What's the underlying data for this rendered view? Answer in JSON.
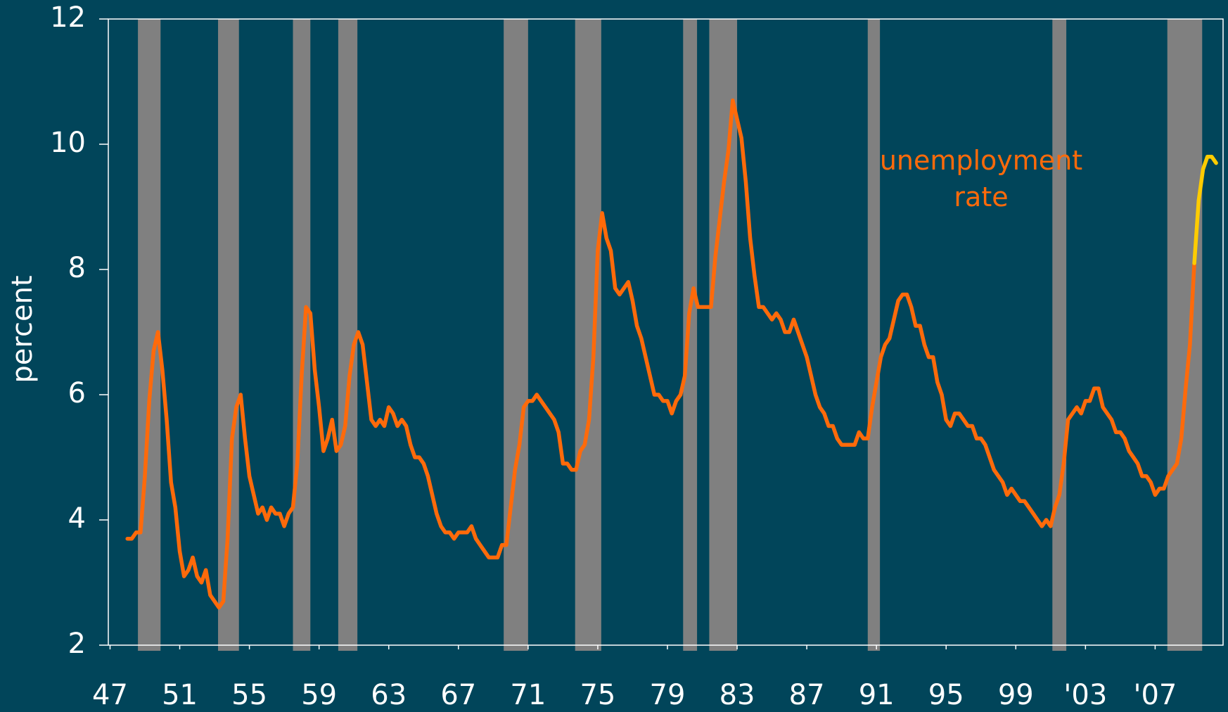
{
  "chart_data": {
    "type": "line",
    "ylabel": "percent",
    "xlim": [
      1946.9,
      2010.9
    ],
    "ylim": [
      2,
      12
    ],
    "yticks": [
      2,
      4,
      6,
      8,
      10,
      12
    ],
    "xticks": [
      {
        "value": 1947,
        "label": "47"
      },
      {
        "value": 1951,
        "label": "51"
      },
      {
        "value": 1955,
        "label": "55"
      },
      {
        "value": 1959,
        "label": "59"
      },
      {
        "value": 1963,
        "label": "63"
      },
      {
        "value": 1967,
        "label": "67"
      },
      {
        "value": 1971,
        "label": "71"
      },
      {
        "value": 1975,
        "label": "75"
      },
      {
        "value": 1979,
        "label": "79"
      },
      {
        "value": 1983,
        "label": "83"
      },
      {
        "value": 1987,
        "label": "87"
      },
      {
        "value": 1991,
        "label": "91"
      },
      {
        "value": 1995,
        "label": "95"
      },
      {
        "value": 1999,
        "label": "99"
      },
      {
        "value": 2003,
        "label": "'03"
      },
      {
        "value": 2007,
        "label": "'07"
      }
    ],
    "recessions": [
      [
        1948.6,
        1949.9
      ],
      [
        1953.2,
        1954.4
      ],
      [
        1957.5,
        1958.5
      ],
      [
        1960.1,
        1961.2
      ],
      [
        1969.6,
        1971.0
      ],
      [
        1973.7,
        1975.2
      ],
      [
        1979.9,
        1980.7
      ],
      [
        1981.4,
        1983.0
      ],
      [
        1990.5,
        1991.2
      ],
      [
        2001.1,
        2001.9
      ],
      [
        2007.7,
        2009.7
      ]
    ],
    "recession_color": "#808080",
    "series": [
      {
        "name": "unemployment rate",
        "color": "#ff6a0a",
        "x": [
          1948,
          1948.25,
          1948.5,
          1948.75,
          1949,
          1949.25,
          1949.5,
          1949.75,
          1950,
          1950.25,
          1950.5,
          1950.75,
          1951,
          1951.25,
          1951.5,
          1951.75,
          1952,
          1952.25,
          1952.5,
          1952.75,
          1953,
          1953.25,
          1953.5,
          1953.75,
          1954,
          1954.25,
          1954.5,
          1954.75,
          1955,
          1955.25,
          1955.5,
          1955.75,
          1956,
          1956.25,
          1956.5,
          1956.75,
          1957,
          1957.25,
          1957.5,
          1957.75,
          1958,
          1958.25,
          1958.5,
          1958.75,
          1959,
          1959.25,
          1959.5,
          1959.75,
          1960,
          1960.25,
          1960.5,
          1960.75,
          1961,
          1961.25,
          1961.5,
          1961.75,
          1962,
          1962.25,
          1962.5,
          1962.75,
          1963,
          1963.25,
          1963.5,
          1963.75,
          1964,
          1964.25,
          1964.5,
          1964.75,
          1965,
          1965.25,
          1965.5,
          1965.75,
          1966,
          1966.25,
          1966.5,
          1966.75,
          1967,
          1967.25,
          1967.5,
          1967.75,
          1968,
          1968.25,
          1968.5,
          1968.75,
          1969,
          1969.25,
          1969.5,
          1969.75,
          1970,
          1970.25,
          1970.5,
          1970.75,
          1971,
          1971.25,
          1971.5,
          1971.75,
          1972,
          1972.25,
          1972.5,
          1972.75,
          1973,
          1973.25,
          1973.5,
          1973.75,
          1974,
          1974.25,
          1974.5,
          1974.75,
          1975,
          1975.25,
          1975.5,
          1975.75,
          1976,
          1976.25,
          1976.5,
          1976.75,
          1977,
          1977.25,
          1977.5,
          1977.75,
          1978,
          1978.25,
          1978.5,
          1978.75,
          1979,
          1979.25,
          1979.5,
          1979.75,
          1980,
          1980.25,
          1980.5,
          1980.75,
          1981,
          1981.25,
          1981.5,
          1981.75,
          1982,
          1982.25,
          1982.5,
          1982.75,
          1983,
          1983.25,
          1983.5,
          1983.75,
          1984,
          1984.25,
          1984.5,
          1984.75,
          1985,
          1985.25,
          1985.5,
          1985.75,
          1986,
          1986.25,
          1986.5,
          1986.75,
          1987,
          1987.25,
          1987.5,
          1987.75,
          1988,
          1988.25,
          1988.5,
          1988.75,
          1989,
          1989.25,
          1989.5,
          1989.75,
          1990,
          1990.25,
          1990.5,
          1990.75,
          1991,
          1991.25,
          1991.5,
          1991.75,
          1992,
          1992.25,
          1992.5,
          1992.75,
          1993,
          1993.25,
          1993.5,
          1993.75,
          1994,
          1994.25,
          1994.5,
          1994.75,
          1995,
          1995.25,
          1995.5,
          1995.75,
          1996,
          1996.25,
          1996.5,
          1996.75,
          1997,
          1997.25,
          1997.5,
          1997.75,
          1998,
          1998.25,
          1998.5,
          1998.75,
          1999,
          1999.25,
          1999.5,
          1999.75,
          2000,
          2000.25,
          2000.5,
          2000.75,
          2001,
          2001.25,
          2001.5,
          2001.75,
          2002,
          2002.25,
          2002.5,
          2002.75,
          2003,
          2003.25,
          2003.5,
          2003.75,
          2004,
          2004.25,
          2004.5,
          2004.75,
          2005,
          2005.25,
          2005.5,
          2005.75,
          2006,
          2006.25,
          2006.5,
          2006.75,
          2007,
          2007.25,
          2007.5,
          2007.75,
          2008,
          2008.25,
          2008.5,
          2008.75,
          2009,
          2009.25
        ],
        "values": [
          3.7,
          3.7,
          3.8,
          3.8,
          4.7,
          5.9,
          6.7,
          7.0,
          6.4,
          5.6,
          4.6,
          4.2,
          3.5,
          3.1,
          3.2,
          3.4,
          3.1,
          3.0,
          3.2,
          2.8,
          2.7,
          2.6,
          2.7,
          3.7,
          5.3,
          5.8,
          6.0,
          5.3,
          4.7,
          4.4,
          4.1,
          4.2,
          4.0,
          4.2,
          4.1,
          4.1,
          3.9,
          4.1,
          4.2,
          4.9,
          6.3,
          7.4,
          7.3,
          6.4,
          5.8,
          5.1,
          5.3,
          5.6,
          5.1,
          5.2,
          5.5,
          6.3,
          6.8,
          7.0,
          6.8,
          6.2,
          5.6,
          5.5,
          5.6,
          5.5,
          5.8,
          5.7,
          5.5,
          5.6,
          5.5,
          5.2,
          5.0,
          5.0,
          4.9,
          4.7,
          4.4,
          4.1,
          3.9,
          3.8,
          3.8,
          3.7,
          3.8,
          3.8,
          3.8,
          3.9,
          3.7,
          3.6,
          3.5,
          3.4,
          3.4,
          3.4,
          3.6,
          3.6,
          4.2,
          4.8,
          5.2,
          5.8,
          5.9,
          5.9,
          6.0,
          5.9,
          5.8,
          5.7,
          5.6,
          5.4,
          4.9,
          4.9,
          4.8,
          4.8,
          5.1,
          5.2,
          5.6,
          6.6,
          8.3,
          8.9,
          8.5,
          8.3,
          7.7,
          7.6,
          7.7,
          7.8,
          7.5,
          7.1,
          6.9,
          6.6,
          6.3,
          6.0,
          6.0,
          5.9,
          5.9,
          5.7,
          5.9,
          6.0,
          6.3,
          7.3,
          7.7,
          7.4,
          7.4,
          7.4,
          7.4,
          8.2,
          8.8,
          9.4,
          9.9,
          10.7,
          10.4,
          10.1,
          9.4,
          8.5,
          7.9,
          7.4,
          7.4,
          7.3,
          7.2,
          7.3,
          7.2,
          7.0,
          7.0,
          7.2,
          7.0,
          6.8,
          6.6,
          6.3,
          6.0,
          5.8,
          5.7,
          5.5,
          5.5,
          5.3,
          5.2,
          5.2,
          5.2,
          5.2,
          5.4,
          5.3,
          5.3,
          5.8,
          6.2,
          6.6,
          6.8,
          6.9,
          7.2,
          7.5,
          7.6,
          7.6,
          7.4,
          7.1,
          7.1,
          6.8,
          6.6,
          6.6,
          6.2,
          6.0,
          5.6,
          5.5,
          5.7,
          5.7,
          5.6,
          5.5,
          5.5,
          5.3,
          5.3,
          5.2,
          5.0,
          4.8,
          4.7,
          4.6,
          4.4,
          4.5,
          4.4,
          4.3,
          4.3,
          4.2,
          4.1,
          4.0,
          3.9,
          4.0,
          3.9,
          4.2,
          4.4,
          4.9,
          5.6,
          5.7,
          5.8,
          5.7,
          5.9,
          5.9,
          6.1,
          6.1,
          5.8,
          5.7,
          5.6,
          5.4,
          5.4,
          5.3,
          5.1,
          5.0,
          4.9,
          4.7,
          4.7,
          4.6,
          4.4,
          4.5,
          4.5,
          4.7,
          4.8,
          4.9,
          5.3,
          6.1,
          6.8,
          8.1
        ]
      },
      {
        "color": "#ffcc00",
        "x": [
          2009.25,
          2009.5,
          2009.75,
          2010,
          2010.25,
          2010.5
        ],
        "values": [
          8.1,
          9.1,
          9.6,
          9.8,
          9.8,
          9.7
        ]
      }
    ]
  }
}
